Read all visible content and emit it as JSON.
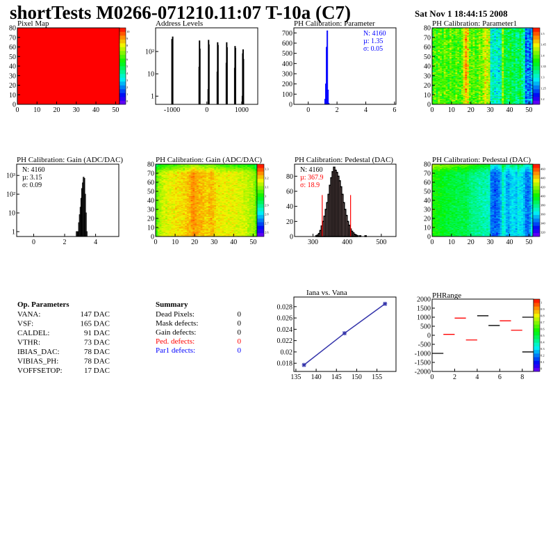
{
  "header": {
    "title": "shortTests M0266-071210.11:07 T-10a (C7)",
    "date": "Sat Nov  1 18:44:15 2008"
  },
  "palette": {
    "red": "#ff0000",
    "blue": "#0000ff",
    "line_blue": "#3333aa",
    "black": "#000000"
  },
  "chart_data": [
    {
      "id": "pixel_map",
      "type": "heatmap",
      "title": "Pixel Map",
      "xlim": [
        0,
        52
      ],
      "ylim": [
        0,
        80
      ],
      "xticks": [
        0,
        10,
        20,
        30,
        40,
        50
      ],
      "yticks": [
        0,
        10,
        20,
        30,
        40,
        50,
        60,
        70,
        80
      ],
      "zlim": [
        0,
        10
      ],
      "zticks": [
        "0",
        "1",
        "2",
        "3",
        "4",
        "5",
        "6",
        "7",
        "8",
        "9",
        "10"
      ],
      "uniform_value": 10
    },
    {
      "id": "address_levels",
      "type": "bar",
      "title": "Address Levels",
      "xlim": [
        -1470,
        1460
      ],
      "ylim": [
        0.43,
        1150
      ],
      "ylog": true,
      "xticks": [
        -1000,
        0,
        1000
      ],
      "yticks": [
        {
          "v": 1,
          "label": "1"
        },
        {
          "v": 10,
          "label": "10"
        },
        {
          "v": 100,
          "label": "10²"
        }
      ],
      "bins": [
        [
          -1010,
          350
        ],
        [
          -990,
          450
        ],
        [
          -230,
          20
        ],
        [
          -220,
          300
        ],
        [
          -210,
          130
        ],
        [
          30,
          2
        ],
        [
          40,
          320
        ],
        [
          50,
          200
        ],
        [
          290,
          12
        ],
        [
          300,
          250
        ],
        [
          310,
          190
        ],
        [
          550,
          30
        ],
        [
          560,
          250
        ],
        [
          570,
          150
        ],
        [
          790,
          18
        ],
        [
          800,
          170
        ],
        [
          810,
          140
        ],
        [
          1010,
          1
        ],
        [
          1020,
          80
        ],
        [
          1030,
          120
        ],
        [
          1040,
          45
        ]
      ],
      "bin_width": 10
    },
    {
      "id": "ph_parameter",
      "type": "bar",
      "title": "PH Calibration: Parameter",
      "xlim": [
        -1,
        6.1
      ],
      "ylim": [
        0,
        750
      ],
      "xticks": [
        0,
        2,
        4,
        6
      ],
      "yticks": [
        0,
        100,
        200,
        300,
        400,
        500,
        600,
        700
      ],
      "bins": [
        [
          1.15,
          50
        ],
        [
          1.2,
          200
        ],
        [
          1.25,
          560
        ],
        [
          1.3,
          720
        ],
        [
          1.35,
          140
        ],
        [
          1.4,
          10
        ]
      ],
      "bin_width": 0.05,
      "stats": {
        "n": "N: 4160",
        "mu": "µ: 1.35",
        "sigma": "σ: 0.05"
      }
    },
    {
      "id": "ph_parameter1",
      "type": "heatmap",
      "title": "PH Calibration: Parameter1",
      "xlim": [
        0,
        52
      ],
      "ylim": [
        0,
        80
      ],
      "xticks": [
        0,
        10,
        20,
        30,
        40,
        50
      ],
      "yticks": [
        0,
        10,
        20,
        30,
        40,
        50,
        60,
        70,
        80
      ],
      "zlim": [
        1.18,
        1.52
      ],
      "zticks": [
        "1.2",
        "1.25",
        "1.3",
        "1.35",
        "1.4",
        "1.45",
        "1.5"
      ],
      "column_means": [
        1.38,
        1.39,
        1.38,
        1.4,
        1.39,
        1.38,
        1.4,
        1.39,
        1.38,
        1.4,
        1.39,
        1.38,
        1.4,
        1.39,
        1.38,
        1.4,
        1.44,
        1.47,
        1.44,
        1.4,
        1.39,
        1.4,
        1.38,
        1.39,
        1.41,
        1.4,
        1.42,
        1.44,
        1.43,
        1.42,
        1.3,
        1.31,
        1.3,
        1.31,
        1.3,
        1.32,
        1.41,
        1.36,
        1.35,
        1.34,
        1.36,
        1.34,
        1.35,
        1.33,
        1.34,
        1.36,
        1.33,
        1.32,
        1.24,
        1.26,
        1.25,
        1.28
      ],
      "row_trend": 0.0,
      "noise": 0.035
    },
    {
      "id": "gain_hist",
      "type": "bar",
      "title": "PH Calibration: Gain (ADC/DAC)",
      "xlim": [
        -1.1,
        5.5
      ],
      "ylim": [
        0.55,
        4000
      ],
      "ylog": true,
      "xticks": [
        0,
        2,
        4
      ],
      "yticks": [
        {
          "v": 1,
          "label": "1"
        },
        {
          "v": 10,
          "label": "10"
        },
        {
          "v": 100,
          "label": "10²"
        },
        {
          "v": 1000,
          "label": "10³"
        }
      ],
      "bins": [
        [
          2.75,
          1
        ],
        [
          2.8,
          1
        ],
        [
          2.85,
          1
        ],
        [
          2.9,
          3
        ],
        [
          2.95,
          8
        ],
        [
          3.0,
          20
        ],
        [
          3.05,
          60
        ],
        [
          3.1,
          200
        ],
        [
          3.15,
          400
        ],
        [
          3.2,
          800
        ],
        [
          3.25,
          700
        ],
        [
          3.3,
          100
        ],
        [
          3.35,
          10
        ],
        [
          3.4,
          1
        ]
      ],
      "bin_width": 0.05,
      "stats": {
        "n": "N: 4160",
        "mu": "µ: 3.15",
        "sigma": "σ: 0.09"
      }
    },
    {
      "id": "gain_map",
      "type": "heatmap",
      "title": "PH Calibration: Gain (ADC/DAC)",
      "xlim": [
        0,
        52
      ],
      "ylim": [
        0,
        80
      ],
      "xticks": [
        0,
        10,
        20,
        30,
        40,
        50
      ],
      "yticks": [
        0,
        10,
        20,
        30,
        40,
        50,
        60,
        70,
        80
      ],
      "zlim": [
        2.55,
        3.35
      ],
      "zticks": [
        "2.6",
        "2.7",
        "2.8",
        "2.9",
        "3",
        "3.1",
        "3.2",
        "3.3"
      ],
      "column_means": [
        3.05,
        3.1,
        3.12,
        3.14,
        3.15,
        3.15,
        3.16,
        3.16,
        3.17,
        3.17,
        3.18,
        3.18,
        3.18,
        3.19,
        3.19,
        3.2,
        3.21,
        3.22,
        3.24,
        3.25,
        3.24,
        3.23,
        3.22,
        3.22,
        3.21,
        3.2,
        3.2,
        3.21,
        3.22,
        3.21,
        3.19,
        3.18,
        3.18,
        3.17,
        3.17,
        3.17,
        3.16,
        3.16,
        3.17,
        3.17,
        3.16,
        3.16,
        3.15,
        3.15,
        3.15,
        3.14,
        3.14,
        3.13,
        3.12,
        3.12,
        3.1,
        3.05
      ],
      "row_trend": -0.15,
      "noise": 0.035
    },
    {
      "id": "pedestal_hist",
      "type": "bar",
      "title": "PH Calibration: Pedestal (DAC)",
      "xlim": [
        246,
        543
      ],
      "ylim": [
        0,
        96
      ],
      "xticks": [
        300,
        400,
        500
      ],
      "yticks": [
        0,
        20,
        40,
        60,
        80
      ],
      "bins": [
        [
          308,
          1
        ],
        [
          312,
          2
        ],
        [
          316,
          4
        ],
        [
          320,
          8
        ],
        [
          324,
          14
        ],
        [
          328,
          20
        ],
        [
          332,
          27
        ],
        [
          336,
          36
        ],
        [
          340,
          45
        ],
        [
          344,
          56
        ],
        [
          348,
          68
        ],
        [
          352,
          78
        ],
        [
          356,
          86
        ],
        [
          360,
          92
        ],
        [
          364,
          88
        ],
        [
          368,
          85
        ],
        [
          372,
          80
        ],
        [
          376,
          74
        ],
        [
          380,
          66
        ],
        [
          384,
          56
        ],
        [
          388,
          45
        ],
        [
          392,
          36
        ],
        [
          396,
          28
        ],
        [
          400,
          20
        ],
        [
          404,
          15
        ],
        [
          408,
          10
        ],
        [
          412,
          7
        ],
        [
          416,
          5
        ],
        [
          420,
          3
        ],
        [
          424,
          2
        ],
        [
          428,
          1
        ],
        [
          436,
          1
        ],
        [
          452,
          1
        ]
      ],
      "bin_width": 4,
      "cut_lines": [
        327,
        410
      ],
      "cut_height": 55,
      "stats": {
        "n": "N: 4160",
        "mu": "µ: 367.9",
        "sigma": "σ: 18.9"
      }
    },
    {
      "id": "pedestal_map",
      "type": "heatmap",
      "title": "PH Calibration: Pedestal (DAC)",
      "xlim": [
        0,
        52
      ],
      "ylim": [
        0,
        80
      ],
      "xticks": [
        0,
        10,
        20,
        30,
        40,
        50
      ],
      "yticks": [
        0,
        10,
        20,
        30,
        40,
        50,
        60,
        70,
        80
      ],
      "zlim": [
        310,
        465
      ],
      "zticks": [
        "320",
        "340",
        "360",
        "380",
        "400",
        "420",
        "440",
        "460"
      ],
      "column_means": [
        400,
        398,
        396,
        395,
        394,
        393,
        392,
        390,
        390,
        389,
        388,
        388,
        387,
        387,
        386,
        386,
        386,
        388,
        384,
        380,
        378,
        378,
        376,
        376,
        374,
        374,
        373,
        372,
        372,
        370,
        345,
        342,
        340,
        342,
        345,
        352,
        370,
        362,
        352,
        350,
        356,
        360,
        358,
        356,
        362,
        360,
        358,
        354,
        344,
        342,
        348,
        360
      ],
      "row_trend": 25,
      "noise": 8
    },
    {
      "id": "iana_vs_vana",
      "type": "line",
      "title": "Iana vs. Vana",
      "xlim": [
        134.5,
        159.7
      ],
      "ylim": [
        0.01655,
        0.0297
      ],
      "xticks": [
        135,
        140,
        145,
        150,
        155
      ],
      "yticks": [
        0.018,
        0.02,
        0.022,
        0.024,
        0.026,
        0.028
      ],
      "points": [
        [
          137,
          0.0177
        ],
        [
          147,
          0.0233
        ],
        [
          157,
          0.0285
        ]
      ]
    },
    {
      "id": "ph_range",
      "type": "heatmap",
      "title": "PHRange",
      "xlim": [
        0,
        9
      ],
      "ylim": [
        -2000,
        2000
      ],
      "xticks": [
        0,
        2,
        4,
        6,
        8
      ],
      "yticks": [
        2000,
        1500,
        1000,
        500,
        0,
        -500,
        -1000,
        -1500,
        -2000
      ],
      "zlim": [
        0,
        1
      ],
      "zticks": [
        "0",
        "0.1",
        "0.2",
        "0.3",
        "0.4",
        "0.5",
        "0.6",
        "0.7",
        "0.8",
        "0.9",
        "1"
      ],
      "segments": [
        [
          0,
          -1000,
          "black"
        ],
        [
          1,
          50,
          "red"
        ],
        [
          2,
          950,
          "red"
        ],
        [
          3,
          -260,
          "red"
        ],
        [
          4,
          1080,
          "black"
        ],
        [
          5,
          540,
          "black"
        ],
        [
          6,
          800,
          "red"
        ],
        [
          7,
          280,
          "red"
        ],
        [
          8,
          1000,
          "black"
        ],
        [
          8,
          -920,
          "black"
        ]
      ]
    }
  ],
  "op_parameters": {
    "title": "Op. Parameters",
    "rows": [
      {
        "name": "VANA:",
        "value": "147 DAC"
      },
      {
        "name": "VSF:",
        "value": "165 DAC"
      },
      {
        "name": "CALDEL:",
        "value": "91 DAC"
      },
      {
        "name": "VTHR:",
        "value": "73 DAC"
      },
      {
        "name": "IBIAS_DAC:",
        "value": "78 DAC"
      },
      {
        "name": "VIBIAS_PH:",
        "value": "78 DAC"
      },
      {
        "name": "VOFFSETOP:",
        "value": "17 DAC"
      }
    ]
  },
  "summary": {
    "title": "Summary",
    "rows": [
      {
        "name": "Dead Pixels:",
        "value": "0",
        "color": "#000000"
      },
      {
        "name": "Mask defects:",
        "value": "0",
        "color": "#000000"
      },
      {
        "name": "Gain defects:",
        "value": "0",
        "color": "#000000"
      },
      {
        "name": "Ped. defects:",
        "value": "0",
        "color": "#ff0000"
      },
      {
        "name": "Par1 defects:",
        "value": "0",
        "color": "#0000ff"
      }
    ]
  }
}
